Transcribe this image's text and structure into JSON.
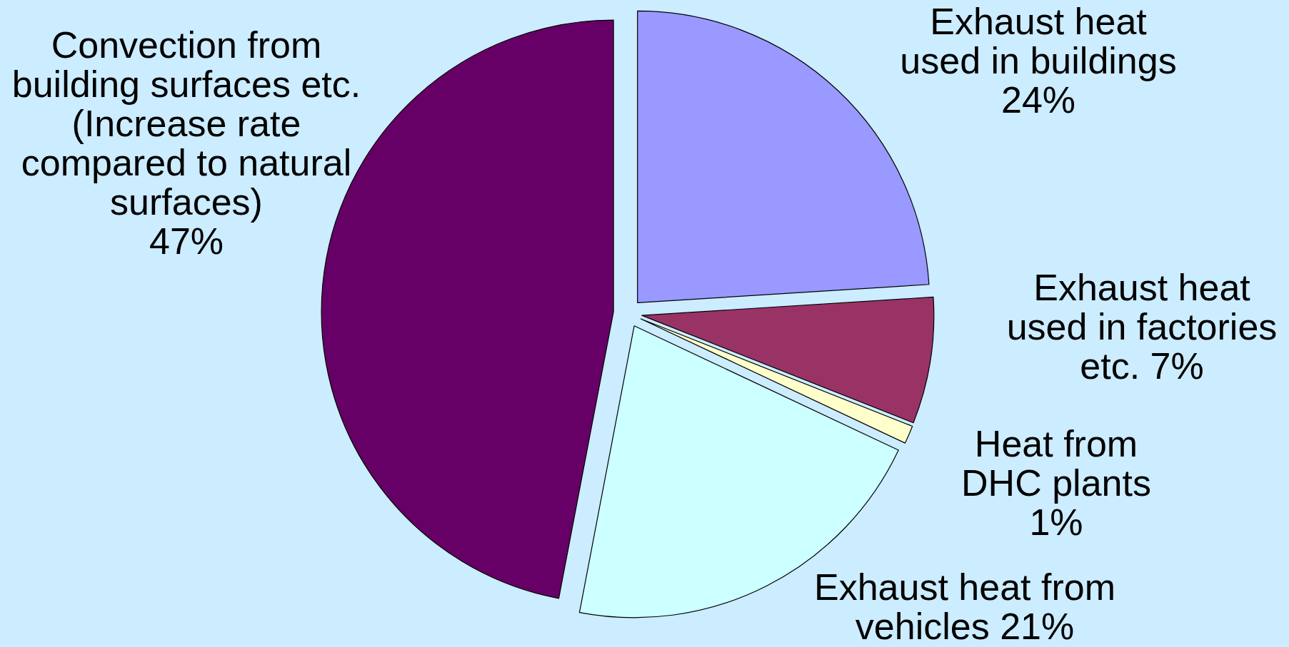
{
  "chart_data": {
    "type": "pie",
    "categories": [
      "Exhaust heat\nused in buildings",
      "Exhaust heat\nused in factories\netc.",
      "Heat from\nDHC plants",
      "Exhaust heat from\nvehicles",
      "Convection from\nbuilding surfaces etc.\n(Increase rate\ncompared to natural\nsurfaces)"
    ],
    "values": [
      24,
      7,
      1,
      21,
      47
    ],
    "colors": [
      "#9999ff",
      "#993366",
      "#ffffcc",
      "#ccffff",
      "#660066"
    ],
    "value_labels": [
      "24%",
      "7%",
      "1%",
      "21%",
      "47%"
    ]
  }
}
